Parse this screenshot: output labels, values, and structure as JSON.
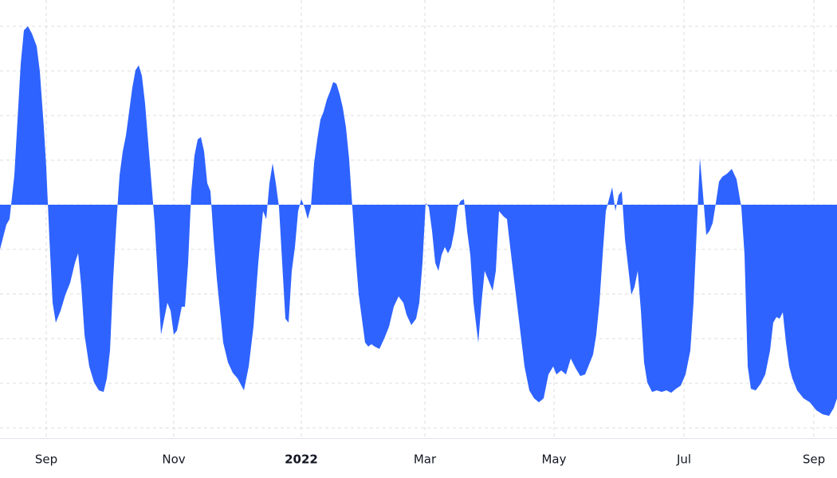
{
  "chart_data": {
    "type": "area",
    "color": "#2e63ff",
    "grid": true,
    "xlim": [
      0,
      1050
    ],
    "ylim": [
      -293,
      257
    ],
    "xticks": [
      {
        "value": 58,
        "label": "Sep"
      },
      {
        "value": 218,
        "label": "Nov"
      },
      {
        "value": 378,
        "label": "2022"
      },
      {
        "value": 533,
        "label": "Mar"
      },
      {
        "value": 695,
        "label": "May"
      },
      {
        "value": 858,
        "label": "Jul"
      },
      {
        "value": 1021,
        "label": "Sep"
      }
    ],
    "yticks": [
      -280,
      -224,
      -168,
      -112,
      -56,
      0,
      56,
      112,
      168,
      224
    ],
    "x": [
      0,
      8,
      12,
      18,
      22,
      26,
      30,
      35,
      40,
      46,
      50,
      55,
      58,
      62,
      66,
      70,
      76,
      82,
      88,
      94,
      98,
      102,
      106,
      112,
      118,
      124,
      130,
      134,
      138,
      142,
      146,
      150,
      154,
      158,
      162,
      166,
      170,
      174,
      178,
      182,
      186,
      190,
      194,
      198,
      202,
      206,
      210,
      214,
      218,
      222,
      228,
      232,
      236,
      240,
      244,
      248,
      252,
      256,
      260,
      264,
      268,
      272,
      276,
      280,
      286,
      292,
      298,
      306,
      312,
      318,
      324,
      330,
      334,
      338,
      342,
      346,
      350,
      354,
      358,
      362,
      366,
      370,
      374,
      378,
      382,
      386,
      390,
      394,
      398,
      402,
      406,
      410,
      414,
      418,
      422,
      426,
      430,
      434,
      438,
      442,
      446,
      450,
      454,
      458,
      462,
      466,
      470,
      476,
      482,
      488,
      494,
      500,
      506,
      510,
      516,
      522,
      526,
      530,
      534,
      538,
      542,
      546,
      550,
      554,
      558,
      562,
      566,
      570,
      574,
      578,
      582,
      586,
      590,
      594,
      600,
      604,
      608,
      612,
      618,
      622,
      626,
      632,
      636,
      640,
      646,
      652,
      658,
      664,
      670,
      676,
      682,
      688,
      694,
      698,
      704,
      710,
      716,
      722,
      728,
      734,
      740,
      744,
      748,
      752,
      756,
      760,
      764,
      768,
      772,
      776,
      780,
      784,
      788,
      792,
      796,
      800,
      804,
      808,
      812,
      818,
      824,
      830,
      836,
      842,
      848,
      854,
      860,
      866,
      870,
      874,
      878,
      882,
      886,
      890,
      894,
      898,
      902,
      906,
      912,
      918,
      924,
      930,
      934,
      938,
      942,
      948,
      954,
      960,
      966,
      970,
      974,
      978,
      982,
      986,
      990,
      994,
      1000,
      1008,
      1016,
      1024,
      1032,
      1040,
      1046,
      1050
    ],
    "values": [
      -56,
      -25,
      -18,
      37,
      107,
      177,
      219,
      224,
      215,
      199,
      167,
      97,
      47,
      -43,
      -123,
      -148,
      -133,
      -113,
      -98,
      -73,
      -61,
      -103,
      -163,
      -203,
      -223,
      -233,
      -235,
      -218,
      -183,
      -93,
      -23,
      37,
      67,
      87,
      117,
      147,
      169,
      175,
      162,
      127,
      77,
      27,
      -23,
      -93,
      -163,
      -143,
      -123,
      -133,
      -163,
      -158,
      -128,
      -128,
      -73,
      17,
      62,
      82,
      85,
      67,
      27,
      17,
      -43,
      -93,
      -133,
      -173,
      -198,
      -211,
      -218,
      -233,
      -203,
      -153,
      -73,
      -8,
      -18,
      27,
      52,
      27,
      -3,
      -73,
      -143,
      -148,
      -83,
      -53,
      -8,
      7,
      -3,
      -18,
      -3,
      52,
      82,
      107,
      117,
      132,
      142,
      154,
      152,
      139,
      122,
      97,
      57,
      -3,
      -63,
      -113,
      -143,
      -173,
      -178,
      -175,
      -178,
      -181,
      -168,
      -153,
      -128,
      -115,
      -123,
      -138,
      -151,
      -143,
      -123,
      -73,
      2,
      -3,
      -33,
      -73,
      -83,
      -63,
      -53,
      -61,
      -53,
      -33,
      -3,
      5,
      7,
      -33,
      -63,
      -123,
      -173,
      -123,
      -83,
      -93,
      -108,
      -83,
      -8,
      -15,
      -18,
      -53,
      -103,
      -153,
      -203,
      -233,
      -243,
      -248,
      -243,
      -213,
      -203,
      -213,
      -208,
      -213,
      -193,
      -205,
      -215,
      -213,
      -198,
      -188,
      -163,
      -123,
      -63,
      -8,
      7,
      22,
      -8,
      12,
      17,
      -43,
      -78,
      -113,
      -103,
      -83,
      -133,
      -198,
      -223,
      -235,
      -233,
      -235,
      -233,
      -236,
      -231,
      -227,
      -213,
      -183,
      -123,
      -33,
      59,
      12,
      -38,
      -33,
      -23,
      2,
      29,
      35,
      39,
      45,
      32,
      -3,
      -63,
      -203,
      -231,
      -233,
      -225,
      -213,
      -183,
      -148,
      -141,
      -143,
      -135,
      -173,
      -203,
      -218,
      -233,
      -243,
      -248,
      -258,
      -263,
      -265,
      -255,
      -243
    ]
  }
}
